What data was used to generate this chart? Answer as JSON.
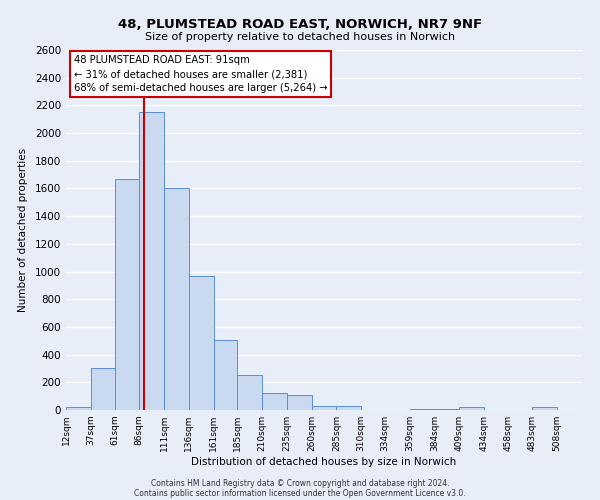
{
  "title": "48, PLUMSTEAD ROAD EAST, NORWICH, NR7 9NF",
  "subtitle": "Size of property relative to detached houses in Norwich",
  "xlabel": "Distribution of detached houses by size in Norwich",
  "ylabel": "Number of detached properties",
  "bin_labels": [
    "12sqm",
    "37sqm",
    "61sqm",
    "86sqm",
    "111sqm",
    "136sqm",
    "161sqm",
    "185sqm",
    "210sqm",
    "235sqm",
    "260sqm",
    "285sqm",
    "310sqm",
    "334sqm",
    "359sqm",
    "384sqm",
    "409sqm",
    "434sqm",
    "458sqm",
    "483sqm",
    "508sqm"
  ],
  "bin_edges": [
    12,
    37,
    61,
    86,
    111,
    136,
    161,
    185,
    210,
    235,
    260,
    285,
    310,
    334,
    359,
    384,
    409,
    434,
    458,
    483,
    508
  ],
  "bar_heights": [
    20,
    300,
    1670,
    2150,
    1600,
    970,
    505,
    250,
    125,
    105,
    30,
    30,
    0,
    0,
    5,
    5,
    20,
    0,
    0,
    20
  ],
  "bar_color": "#c9d9f0",
  "bar_edge_color": "#5b8dd9",
  "background_color": "#e8eef8",
  "grid_color": "#ffffff",
  "vline_x": 91,
  "vline_color": "#cc0000",
  "annotation_line1": "48 PLUMSTEAD ROAD EAST: 91sqm",
  "annotation_line2": "← 31% of detached houses are smaller (2,381)",
  "annotation_line3": "68% of semi-detached houses are larger (5,264) →",
  "annotation_box_color": "#ffffff",
  "annotation_box_edge": "#cc0000",
  "ylim": [
    0,
    2600
  ],
  "yticks": [
    0,
    200,
    400,
    600,
    800,
    1000,
    1200,
    1400,
    1600,
    1800,
    2000,
    2200,
    2400,
    2600
  ],
  "footer_line1": "Contains HM Land Registry data © Crown copyright and database right 2024.",
  "footer_line2": "Contains public sector information licensed under the Open Government Licence v3.0."
}
